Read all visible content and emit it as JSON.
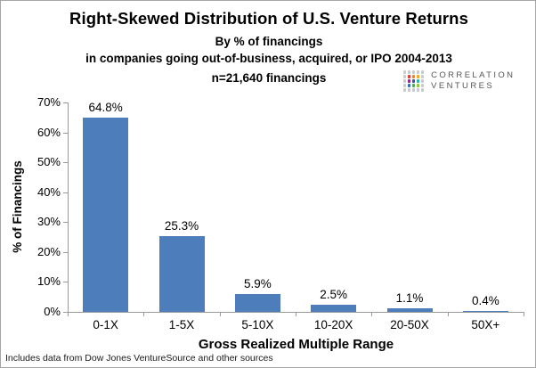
{
  "header": {
    "title": "Right-Skewed Distribution of U.S. Venture Returns",
    "subtitle1": "By % of financings",
    "subtitle2": "in companies going out-of-business, acquired, or IPO 2004-2013",
    "subtitle3": "n=21,640 financings"
  },
  "logo": {
    "name": "Correlation Ventures",
    "line1": "CORRELATION",
    "line2": "VENTURES",
    "text_color": "#55565a",
    "dot_colors": [
      "#c9cacb",
      "#c9cacb",
      "#c9cacb",
      "#c9cacb",
      "#c9cacb",
      "#c9cacb",
      "#e03c31",
      "#f58220",
      "#faa61a",
      "#c9cacb",
      "#c9cacb",
      "#92278f",
      "#3f51a5",
      "#26b7af",
      "#c9cacb",
      "#c9cacb",
      "#2d74b7",
      "#3ab54a",
      "#8dc63f",
      "#c9cacb",
      "#c9cacb",
      "#c9cacb",
      "#c9cacb",
      "#c9cacb",
      "#c9cacb"
    ]
  },
  "chart_data": {
    "type": "bar",
    "title": "Right-Skewed Distribution of U.S. Venture Returns",
    "subtitle": "By % of financings in companies going out-of-business, acquired, or IPO 2004-2013, n=21,640 financings",
    "categories": [
      "0-1X",
      "1-5X",
      "5-10X",
      "10-20X",
      "20-50X",
      "50X+"
    ],
    "values": [
      64.8,
      25.3,
      5.9,
      2.5,
      1.1,
      0.4
    ],
    "bar_labels": [
      "64.8%",
      "25.3%",
      "5.9%",
      "2.5%",
      "1.1%",
      "0.4%"
    ],
    "xlabel": "Gross Realized Multiple Range",
    "ylabel": "% of Financings",
    "ylim": [
      0,
      70
    ],
    "yticks": [
      "0%",
      "10%",
      "20%",
      "30%",
      "40%",
      "50%",
      "60%",
      "70%"
    ],
    "grid": false,
    "legend": false,
    "bar_color": "#4d7ebb",
    "axis_color": "#9a9a9a"
  },
  "footnote": "Includes data from Dow Jones VentureSource and other sources"
}
